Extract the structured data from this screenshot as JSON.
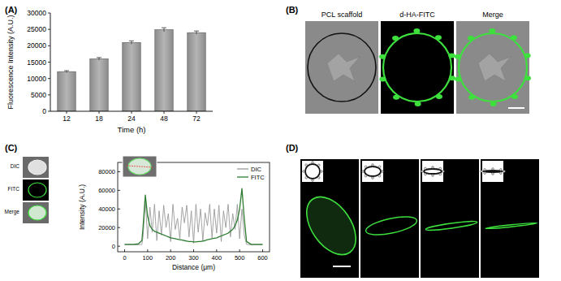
{
  "panels": [
    "(A)",
    "(B)",
    "(C)",
    "(D)"
  ],
  "panel_b": {
    "titles": [
      "PCL scaffold",
      "d-HA-FITC",
      "Merge"
    ]
  },
  "panel_c": {
    "image_labels": [
      "DIC",
      "FITC",
      "Merge"
    ]
  },
  "chart_data": [
    {
      "type": "bar",
      "x_label": "Time (h)",
      "y_label": "Fluorescence Intensity (A.U.)",
      "categories": [
        "12",
        "18",
        "24",
        "48",
        "72"
      ],
      "values": [
        12100,
        16000,
        21000,
        24900,
        24000
      ],
      "errors": [
        300,
        400,
        500,
        600,
        500
      ],
      "color": "#8c8c8c",
      "ylim": [
        0,
        30000
      ],
      "yticks": [
        0,
        5000,
        10000,
        15000,
        20000,
        25000,
        30000
      ]
    },
    {
      "type": "line",
      "x_label": "Distance (μm)",
      "y_label": "Intensity (A.U.)",
      "x": [
        0,
        20,
        40,
        60,
        75,
        80,
        90,
        100,
        110,
        120,
        130,
        140,
        150,
        160,
        170,
        180,
        190,
        200,
        210,
        220,
        230,
        240,
        250,
        260,
        270,
        280,
        290,
        300,
        310,
        320,
        330,
        340,
        350,
        360,
        370,
        380,
        390,
        400,
        410,
        420,
        430,
        440,
        450,
        460,
        470,
        480,
        490,
        500,
        510,
        520,
        530,
        550,
        570,
        600
      ],
      "series": [
        {
          "name": "DIC",
          "color": "#9a9a9a",
          "values": [
            1500,
            1500,
            1500,
            1500,
            2000,
            10000,
            50000,
            8000,
            42000,
            15000,
            45000,
            6000,
            38000,
            12000,
            44000,
            20000,
            35000,
            5000,
            45000,
            18000,
            30000,
            8000,
            42000,
            25000,
            44000,
            10000,
            38000,
            3000,
            45000,
            15000,
            40000,
            6000,
            36000,
            22000,
            45000,
            9000,
            40000,
            14000,
            44000,
            5000,
            38000,
            20000,
            45000,
            10000,
            35000,
            18000,
            45000,
            8000,
            40000,
            12000,
            2000,
            1500,
            1500,
            1500
          ]
        },
        {
          "name": "FITC",
          "color": "#2e7d32",
          "values": [
            2000,
            2000,
            2000,
            2500,
            6000,
            20000,
            55000,
            32000,
            22000,
            18000,
            16000,
            15000,
            14000,
            13000,
            12000,
            11000,
            10000,
            9000,
            8500,
            8000,
            7500,
            7000,
            6500,
            6000,
            5500,
            5000,
            5000,
            4500,
            4500,
            5000,
            5000,
            5500,
            6000,
            7000,
            7500,
            8000,
            8500,
            9000,
            10000,
            11000,
            12000,
            13000,
            14000,
            16000,
            18000,
            22000,
            28000,
            40000,
            62000,
            30000,
            5000,
            2000,
            2000,
            2000
          ]
        }
      ],
      "xlim": [
        -30,
        630
      ],
      "xticks": [
        0,
        100,
        200,
        300,
        400,
        500,
        600
      ],
      "ylim": [
        -6000,
        90000
      ],
      "yticks": [
        0,
        20000,
        40000,
        60000,
        80000
      ],
      "legend": "upper right"
    }
  ]
}
